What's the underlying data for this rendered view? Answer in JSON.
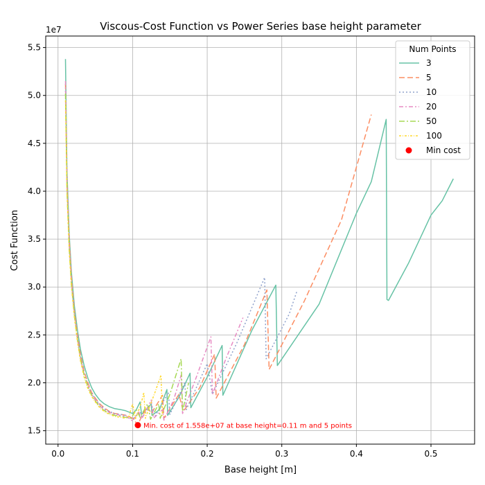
{
  "chart_data": {
    "type": "line",
    "title": "Viscous-Cost Function vs Power Series base height parameter",
    "xlabel": "Base height [m]",
    "ylabel": "Cost Function",
    "y_offset_label": "1e7",
    "xlim": [
      -0.0165,
      0.5585
    ],
    "ylim": [
      1.36,
      5.62
    ],
    "x_ticks": [
      0.0,
      0.1,
      0.2,
      0.3,
      0.4,
      0.5
    ],
    "x_tick_labels": [
      "0.0",
      "0.1",
      "0.2",
      "0.3",
      "0.4",
      "0.5"
    ],
    "y_ticks": [
      1.5,
      2.0,
      2.5,
      3.0,
      3.5,
      4.0,
      4.5,
      5.0,
      5.5
    ],
    "y_tick_labels": [
      "1.5",
      "2.0",
      "2.5",
      "3.0",
      "3.5",
      "4.0",
      "4.5",
      "5.0",
      "5.5"
    ],
    "grid": true,
    "legend": {
      "title": "Num Points",
      "placement": "top-right"
    },
    "series": [
      {
        "name": "3",
        "color": "#66c2a5",
        "dash": "solid",
        "points": [
          [
            0.01,
            5.38
          ],
          [
            0.012,
            4.2
          ],
          [
            0.015,
            3.55
          ],
          [
            0.018,
            3.15
          ],
          [
            0.022,
            2.8
          ],
          [
            0.026,
            2.55
          ],
          [
            0.03,
            2.35
          ],
          [
            0.035,
            2.18
          ],
          [
            0.04,
            2.05
          ],
          [
            0.045,
            1.95
          ],
          [
            0.05,
            1.88
          ],
          [
            0.056,
            1.82
          ],
          [
            0.062,
            1.78
          ],
          [
            0.069,
            1.75
          ],
          [
            0.076,
            1.73
          ],
          [
            0.084,
            1.72
          ],
          [
            0.09,
            1.71
          ],
          [
            0.1,
            1.68
          ],
          [
            0.105,
            1.72
          ],
          [
            0.11,
            1.8
          ],
          [
            0.112,
            1.67
          ],
          [
            0.125,
            1.78
          ],
          [
            0.126,
            1.66
          ],
          [
            0.136,
            1.72
          ],
          [
            0.146,
            1.93
          ],
          [
            0.147,
            1.66
          ],
          [
            0.162,
            1.85
          ],
          [
            0.177,
            2.1
          ],
          [
            0.178,
            1.74
          ],
          [
            0.2,
            2.06
          ],
          [
            0.22,
            2.39
          ],
          [
            0.221,
            1.87
          ],
          [
            0.26,
            2.55
          ],
          [
            0.292,
            3.02
          ],
          [
            0.294,
            2.18
          ],
          [
            0.35,
            2.82
          ],
          [
            0.4,
            3.77
          ],
          [
            0.42,
            4.1
          ],
          [
            0.44,
            4.75
          ],
          [
            0.441,
            2.87
          ],
          [
            0.443,
            2.86
          ],
          [
            0.47,
            3.25
          ],
          [
            0.5,
            3.75
          ],
          [
            0.515,
            3.9
          ],
          [
            0.53,
            4.13
          ]
        ]
      },
      {
        "name": "5",
        "color": "#fc8d62",
        "dash": "8 4",
        "points": [
          [
            0.01,
            5.12
          ],
          [
            0.012,
            4.1
          ],
          [
            0.015,
            3.5
          ],
          [
            0.018,
            3.1
          ],
          [
            0.022,
            2.75
          ],
          [
            0.026,
            2.5
          ],
          [
            0.03,
            2.3
          ],
          [
            0.035,
            2.12
          ],
          [
            0.04,
            2.0
          ],
          [
            0.045,
            1.9
          ],
          [
            0.05,
            1.84
          ],
          [
            0.056,
            1.78
          ],
          [
            0.062,
            1.74
          ],
          [
            0.069,
            1.7
          ],
          [
            0.076,
            1.68
          ],
          [
            0.084,
            1.67
          ],
          [
            0.092,
            1.66
          ],
          [
            0.1,
            1.63
          ],
          [
            0.107,
            1.56
          ],
          [
            0.112,
            1.65
          ],
          [
            0.12,
            1.75
          ],
          [
            0.125,
            1.68
          ],
          [
            0.14,
            1.87
          ],
          [
            0.142,
            1.63
          ],
          [
            0.162,
            1.88
          ],
          [
            0.168,
            1.7
          ],
          [
            0.19,
            1.95
          ],
          [
            0.21,
            2.3
          ],
          [
            0.212,
            1.84
          ],
          [
            0.25,
            2.4
          ],
          [
            0.28,
            2.97
          ],
          [
            0.283,
            2.14
          ],
          [
            0.33,
            2.85
          ],
          [
            0.38,
            3.7
          ],
          [
            0.42,
            4.8
          ]
        ]
      },
      {
        "name": "10",
        "color": "#8da0cb",
        "dash": "2 3",
        "points": [
          [
            0.01,
            5.05
          ],
          [
            0.012,
            4.05
          ],
          [
            0.015,
            3.45
          ],
          [
            0.018,
            3.05
          ],
          [
            0.022,
            2.72
          ],
          [
            0.026,
            2.47
          ],
          [
            0.03,
            2.27
          ],
          [
            0.035,
            2.1
          ],
          [
            0.04,
            1.98
          ],
          [
            0.045,
            1.89
          ],
          [
            0.05,
            1.83
          ],
          [
            0.056,
            1.77
          ],
          [
            0.062,
            1.73
          ],
          [
            0.069,
            1.7
          ],
          [
            0.076,
            1.68
          ],
          [
            0.084,
            1.67
          ],
          [
            0.09,
            1.66
          ],
          [
            0.1,
            1.62
          ],
          [
            0.11,
            1.7
          ],
          [
            0.113,
            1.64
          ],
          [
            0.125,
            1.78
          ],
          [
            0.13,
            1.65
          ],
          [
            0.148,
            1.9
          ],
          [
            0.15,
            1.67
          ],
          [
            0.17,
            2.0
          ],
          [
            0.172,
            1.72
          ],
          [
            0.2,
            2.2
          ],
          [
            0.207,
            1.88
          ],
          [
            0.24,
            2.42
          ],
          [
            0.277,
            3.1
          ],
          [
            0.279,
            2.25
          ],
          [
            0.31,
            2.72
          ],
          [
            0.32,
            2.95
          ]
        ]
      },
      {
        "name": "20",
        "color": "#e78ac3",
        "dash": "6 3 2 3",
        "points": [
          [
            0.01,
            5.15
          ],
          [
            0.012,
            4.05
          ],
          [
            0.015,
            3.45
          ],
          [
            0.018,
            3.05
          ],
          [
            0.022,
            2.72
          ],
          [
            0.026,
            2.46
          ],
          [
            0.03,
            2.26
          ],
          [
            0.035,
            2.09
          ],
          [
            0.04,
            1.97
          ],
          [
            0.045,
            1.88
          ],
          [
            0.05,
            1.82
          ],
          [
            0.056,
            1.76
          ],
          [
            0.062,
            1.72
          ],
          [
            0.069,
            1.69
          ],
          [
            0.076,
            1.67
          ],
          [
            0.084,
            1.66
          ],
          [
            0.092,
            1.65
          ],
          [
            0.1,
            1.6
          ],
          [
            0.108,
            1.7
          ],
          [
            0.112,
            1.62
          ],
          [
            0.125,
            1.82
          ],
          [
            0.128,
            1.63
          ],
          [
            0.14,
            1.72
          ],
          [
            0.142,
            1.61
          ],
          [
            0.155,
            1.82
          ],
          [
            0.165,
            2.08
          ],
          [
            0.167,
            1.68
          ],
          [
            0.185,
            2.05
          ],
          [
            0.205,
            2.48
          ],
          [
            0.207,
            1.88
          ],
          [
            0.225,
            2.25
          ],
          [
            0.248,
            2.68
          ]
        ]
      },
      {
        "name": "50",
        "color": "#a6d854",
        "dash": "8 3 2 3",
        "points": [
          [
            0.01,
            5.02
          ],
          [
            0.012,
            4.0
          ],
          [
            0.015,
            3.4
          ],
          [
            0.018,
            3.02
          ],
          [
            0.022,
            2.7
          ],
          [
            0.026,
            2.45
          ],
          [
            0.03,
            2.25
          ],
          [
            0.035,
            2.08
          ],
          [
            0.04,
            1.96
          ],
          [
            0.045,
            1.87
          ],
          [
            0.05,
            1.81
          ],
          [
            0.056,
            1.75
          ],
          [
            0.062,
            1.71
          ],
          [
            0.069,
            1.68
          ],
          [
            0.076,
            1.66
          ],
          [
            0.084,
            1.65
          ],
          [
            0.09,
            1.64
          ],
          [
            0.098,
            1.63
          ],
          [
            0.105,
            1.72
          ],
          [
            0.11,
            1.64
          ],
          [
            0.12,
            1.78
          ],
          [
            0.124,
            1.62
          ],
          [
            0.135,
            1.78
          ],
          [
            0.137,
            1.63
          ],
          [
            0.15,
            1.88
          ],
          [
            0.165,
            2.25
          ],
          [
            0.167,
            1.7
          ],
          [
            0.175,
            2.0
          ]
        ]
      },
      {
        "name": "100",
        "color": "#ffd92f",
        "dash": "3 2 1 2",
        "points": [
          [
            0.01,
            4.95
          ],
          [
            0.012,
            3.98
          ],
          [
            0.015,
            3.38
          ],
          [
            0.018,
            3.0
          ],
          [
            0.022,
            2.68
          ],
          [
            0.026,
            2.43
          ],
          [
            0.03,
            2.23
          ],
          [
            0.035,
            2.06
          ],
          [
            0.04,
            1.94
          ],
          [
            0.045,
            1.86
          ],
          [
            0.05,
            1.8
          ],
          [
            0.056,
            1.74
          ],
          [
            0.062,
            1.7
          ],
          [
            0.069,
            1.67
          ],
          [
            0.076,
            1.65
          ],
          [
            0.084,
            1.64
          ],
          [
            0.09,
            1.63
          ],
          [
            0.095,
            1.65
          ],
          [
            0.1,
            1.78
          ],
          [
            0.104,
            1.62
          ],
          [
            0.112,
            1.8
          ],
          [
            0.115,
            1.9
          ],
          [
            0.117,
            1.63
          ],
          [
            0.13,
            1.9
          ],
          [
            0.138,
            2.08
          ],
          [
            0.14,
            1.65
          ]
        ]
      }
    ],
    "min_cost": {
      "name": "Min cost",
      "color": "#ff0000",
      "x": 0.107,
      "y": 1.558,
      "annotation": "Min. cost of 1.558e+07 at base height=0.11 m and 5 points"
    }
  }
}
